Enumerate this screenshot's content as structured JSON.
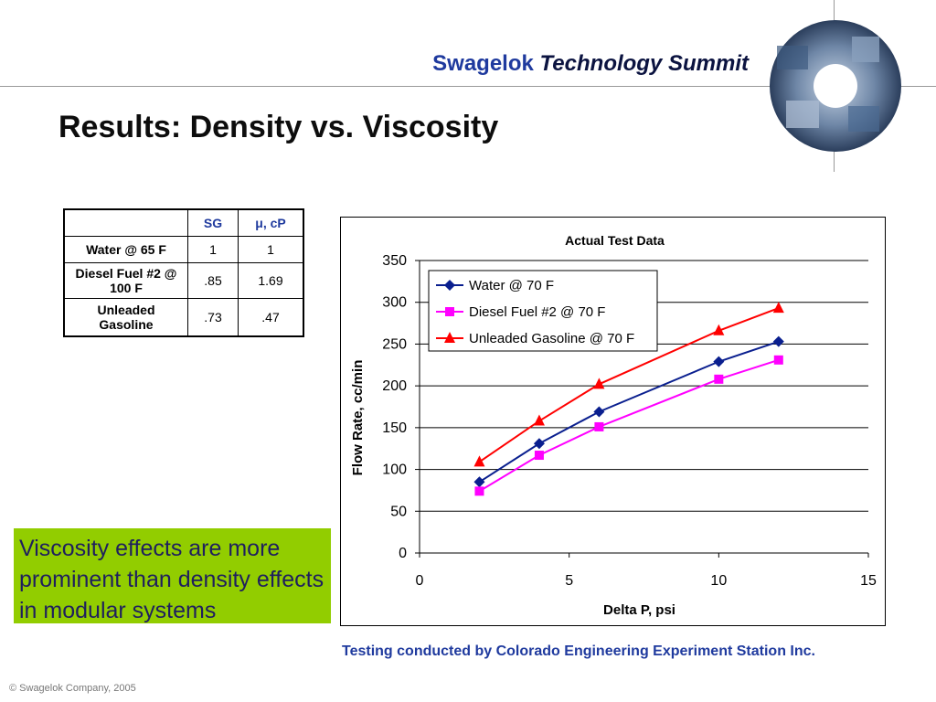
{
  "header": {
    "brand_name": "Swagelok",
    "brand_event": "Technology Summit"
  },
  "slide": {
    "title": "Results: Density vs. Viscosity",
    "callout": "Viscosity effects are more prominent than density effects in modular systems",
    "source": "Testing conducted by Colorado Engineering Experiment Station Inc.",
    "footer": "© Swagelok Company, 2005"
  },
  "table": {
    "headers": [
      "",
      "SG",
      "μ, cP"
    ],
    "rows": [
      [
        "Water @ 65 F",
        "1",
        "1"
      ],
      [
        "Diesel Fuel #2 @ 100 F",
        ".85",
        "1.69"
      ],
      [
        "Unleaded Gasoline",
        ".73",
        ".47"
      ]
    ]
  },
  "colors": {
    "brand_blue": "#1f3a9e",
    "callout_green": "#92cd00",
    "water": "#0a1f8f",
    "diesel": "#ff00ff",
    "gasoline": "#ff0000"
  },
  "chart_data": {
    "type": "line",
    "title": "Actual Test Data",
    "xlabel": "Delta P, psi",
    "ylabel": "Flow Rate, cc/min",
    "xlim": [
      0,
      15
    ],
    "ylim": [
      0,
      350
    ],
    "xticks": [
      0,
      5,
      10,
      15
    ],
    "yticks": [
      0,
      50,
      100,
      150,
      200,
      250,
      300,
      350
    ],
    "grid": "horizontal",
    "legend": "top-left",
    "series": [
      {
        "name": "Water @ 70 F",
        "marker": "diamond",
        "color": "#0a1f8f",
        "x": [
          2,
          4,
          6,
          10,
          12
        ],
        "y": [
          85,
          131,
          169,
          229,
          253
        ]
      },
      {
        "name": "Diesel Fuel #2 @ 70 F",
        "marker": "square",
        "color": "#ff00ff",
        "x": [
          2,
          4,
          6,
          10,
          12
        ],
        "y": [
          74,
          117,
          151,
          208,
          231
        ]
      },
      {
        "name": "Unleaded Gasoline @ 70 F",
        "marker": "triangle",
        "color": "#ff0000",
        "x": [
          2,
          4,
          6,
          10,
          12
        ],
        "y": [
          109,
          158,
          202,
          266,
          293
        ]
      }
    ]
  }
}
